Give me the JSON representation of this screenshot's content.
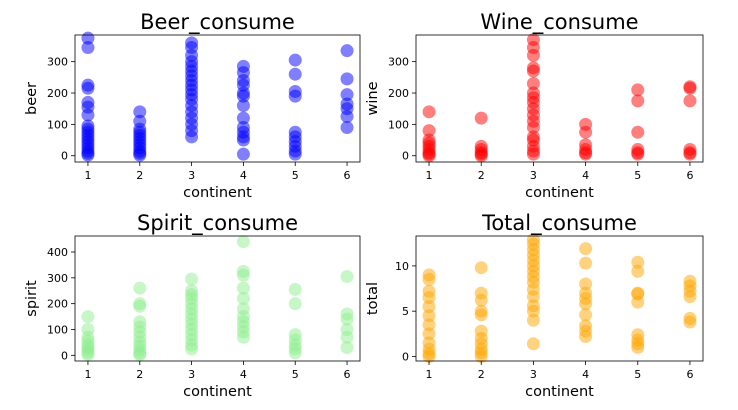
{
  "chart_data": [
    {
      "type": "scatter",
      "title": "Beer_consume",
      "xlabel": "continent",
      "ylabel": "beer",
      "color": "#0000ff",
      "alpha": 0.5,
      "xlim": [
        0.75,
        6.25
      ],
      "ylim": [
        -20,
        385
      ],
      "xticks": [
        1,
        2,
        3,
        4,
        5,
        6
      ],
      "yticks": [
        0,
        100,
        200,
        300
      ],
      "points": [
        {
          "x": 1,
          "y": 375
        },
        {
          "x": 1,
          "y": 345
        },
        {
          "x": 1,
          "y": 225
        },
        {
          "x": 1,
          "y": 215
        },
        {
          "x": 1,
          "y": 170
        },
        {
          "x": 1,
          "y": 155
        },
        {
          "x": 1,
          "y": 130
        },
        {
          "x": 1,
          "y": 95
        },
        {
          "x": 1,
          "y": 85
        },
        {
          "x": 1,
          "y": 75
        },
        {
          "x": 1,
          "y": 65
        },
        {
          "x": 1,
          "y": 55
        },
        {
          "x": 1,
          "y": 45
        },
        {
          "x": 1,
          "y": 35
        },
        {
          "x": 1,
          "y": 25
        },
        {
          "x": 1,
          "y": 15
        },
        {
          "x": 1,
          "y": 8
        },
        {
          "x": 1,
          "y": 2
        },
        {
          "x": 2,
          "y": 140
        },
        {
          "x": 2,
          "y": 110
        },
        {
          "x": 2,
          "y": 85
        },
        {
          "x": 2,
          "y": 75
        },
        {
          "x": 2,
          "y": 65
        },
        {
          "x": 2,
          "y": 55
        },
        {
          "x": 2,
          "y": 45
        },
        {
          "x": 2,
          "y": 35
        },
        {
          "x": 2,
          "y": 25
        },
        {
          "x": 2,
          "y": 15
        },
        {
          "x": 2,
          "y": 8
        },
        {
          "x": 2,
          "y": 2
        },
        {
          "x": 3,
          "y": 360
        },
        {
          "x": 3,
          "y": 345
        },
        {
          "x": 3,
          "y": 320
        },
        {
          "x": 3,
          "y": 300
        },
        {
          "x": 3,
          "y": 285
        },
        {
          "x": 3,
          "y": 270
        },
        {
          "x": 3,
          "y": 255
        },
        {
          "x": 3,
          "y": 240
        },
        {
          "x": 3,
          "y": 225
        },
        {
          "x": 3,
          "y": 210
        },
        {
          "x": 3,
          "y": 195
        },
        {
          "x": 3,
          "y": 180
        },
        {
          "x": 3,
          "y": 160
        },
        {
          "x": 3,
          "y": 140
        },
        {
          "x": 3,
          "y": 120
        },
        {
          "x": 3,
          "y": 100
        },
        {
          "x": 3,
          "y": 80
        },
        {
          "x": 3,
          "y": 60
        },
        {
          "x": 4,
          "y": 285
        },
        {
          "x": 4,
          "y": 265
        },
        {
          "x": 4,
          "y": 240
        },
        {
          "x": 4,
          "y": 225
        },
        {
          "x": 4,
          "y": 200
        },
        {
          "x": 4,
          "y": 190
        },
        {
          "x": 4,
          "y": 160
        },
        {
          "x": 4,
          "y": 120
        },
        {
          "x": 4,
          "y": 90
        },
        {
          "x": 4,
          "y": 75
        },
        {
          "x": 4,
          "y": 60
        },
        {
          "x": 4,
          "y": 50
        },
        {
          "x": 4,
          "y": 5
        },
        {
          "x": 5,
          "y": 305
        },
        {
          "x": 5,
          "y": 260
        },
        {
          "x": 5,
          "y": 205
        },
        {
          "x": 5,
          "y": 190
        },
        {
          "x": 5,
          "y": 75
        },
        {
          "x": 5,
          "y": 60
        },
        {
          "x": 5,
          "y": 45
        },
        {
          "x": 5,
          "y": 30
        },
        {
          "x": 5,
          "y": 15
        },
        {
          "x": 5,
          "y": 5
        },
        {
          "x": 6,
          "y": 335
        },
        {
          "x": 6,
          "y": 245
        },
        {
          "x": 6,
          "y": 195
        },
        {
          "x": 6,
          "y": 165
        },
        {
          "x": 6,
          "y": 150
        },
        {
          "x": 6,
          "y": 125
        },
        {
          "x": 6,
          "y": 90
        }
      ]
    },
    {
      "type": "scatter",
      "title": "Wine_consume",
      "xlabel": "continent",
      "ylabel": "wine",
      "color": "#ff0000",
      "alpha": 0.5,
      "xlim": [
        0.75,
        6.25
      ],
      "ylim": [
        -20,
        385
      ],
      "xticks": [
        1,
        2,
        3,
        4,
        5,
        6
      ],
      "yticks": [
        0,
        100,
        200,
        300
      ],
      "points": [
        {
          "x": 1,
          "y": 140
        },
        {
          "x": 1,
          "y": 80
        },
        {
          "x": 1,
          "y": 50
        },
        {
          "x": 1,
          "y": 40
        },
        {
          "x": 1,
          "y": 30
        },
        {
          "x": 1,
          "y": 20
        },
        {
          "x": 1,
          "y": 10
        },
        {
          "x": 1,
          "y": 5
        },
        {
          "x": 1,
          "y": 0
        },
        {
          "x": 2,
          "y": 120
        },
        {
          "x": 2,
          "y": 30
        },
        {
          "x": 2,
          "y": 20
        },
        {
          "x": 2,
          "y": 10
        },
        {
          "x": 2,
          "y": 5
        },
        {
          "x": 2,
          "y": 0
        },
        {
          "x": 3,
          "y": 370
        },
        {
          "x": 3,
          "y": 345
        },
        {
          "x": 3,
          "y": 320
        },
        {
          "x": 3,
          "y": 280
        },
        {
          "x": 3,
          "y": 270
        },
        {
          "x": 3,
          "y": 230
        },
        {
          "x": 3,
          "y": 200
        },
        {
          "x": 3,
          "y": 185
        },
        {
          "x": 3,
          "y": 170
        },
        {
          "x": 3,
          "y": 150
        },
        {
          "x": 3,
          "y": 130
        },
        {
          "x": 3,
          "y": 110
        },
        {
          "x": 3,
          "y": 90
        },
        {
          "x": 3,
          "y": 60
        },
        {
          "x": 3,
          "y": 50
        },
        {
          "x": 3,
          "y": 30
        },
        {
          "x": 3,
          "y": 15
        },
        {
          "x": 3,
          "y": 5
        },
        {
          "x": 4,
          "y": 100
        },
        {
          "x": 4,
          "y": 75
        },
        {
          "x": 4,
          "y": 35
        },
        {
          "x": 4,
          "y": 20
        },
        {
          "x": 4,
          "y": 10
        },
        {
          "x": 4,
          "y": 5
        },
        {
          "x": 5,
          "y": 210
        },
        {
          "x": 5,
          "y": 175
        },
        {
          "x": 5,
          "y": 75
        },
        {
          "x": 5,
          "y": 20
        },
        {
          "x": 5,
          "y": 10
        },
        {
          "x": 5,
          "y": 5
        },
        {
          "x": 6,
          "y": 220
        },
        {
          "x": 6,
          "y": 215
        },
        {
          "x": 6,
          "y": 175
        },
        {
          "x": 6,
          "y": 20
        },
        {
          "x": 6,
          "y": 10
        },
        {
          "x": 6,
          "y": 5
        }
      ]
    },
    {
      "type": "scatter",
      "title": "Spirit_consume",
      "xlabel": "continent",
      "ylabel": "spirit",
      "color": "#90ee90",
      "alpha": 0.5,
      "xlim": [
        0.75,
        6.25
      ],
      "ylim": [
        -22,
        462
      ],
      "xticks": [
        1,
        2,
        3,
        4,
        5,
        6
      ],
      "yticks": [
        0,
        100,
        200,
        300,
        400
      ],
      "points": [
        {
          "x": 1,
          "y": 150
        },
        {
          "x": 1,
          "y": 100
        },
        {
          "x": 1,
          "y": 70
        },
        {
          "x": 1,
          "y": 55
        },
        {
          "x": 1,
          "y": 40
        },
        {
          "x": 1,
          "y": 30
        },
        {
          "x": 1,
          "y": 20
        },
        {
          "x": 1,
          "y": 10
        },
        {
          "x": 1,
          "y": 3
        },
        {
          "x": 2,
          "y": 260
        },
        {
          "x": 2,
          "y": 200
        },
        {
          "x": 2,
          "y": 190
        },
        {
          "x": 2,
          "y": 130
        },
        {
          "x": 2,
          "y": 110
        },
        {
          "x": 2,
          "y": 90
        },
        {
          "x": 2,
          "y": 70
        },
        {
          "x": 2,
          "y": 50
        },
        {
          "x": 2,
          "y": 35
        },
        {
          "x": 2,
          "y": 20
        },
        {
          "x": 2,
          "y": 8
        },
        {
          "x": 2,
          "y": 2
        },
        {
          "x": 3,
          "y": 295
        },
        {
          "x": 3,
          "y": 250
        },
        {
          "x": 3,
          "y": 235
        },
        {
          "x": 3,
          "y": 220
        },
        {
          "x": 3,
          "y": 200
        },
        {
          "x": 3,
          "y": 180
        },
        {
          "x": 3,
          "y": 160
        },
        {
          "x": 3,
          "y": 140
        },
        {
          "x": 3,
          "y": 120
        },
        {
          "x": 3,
          "y": 100
        },
        {
          "x": 3,
          "y": 80
        },
        {
          "x": 3,
          "y": 60
        },
        {
          "x": 3,
          "y": 40
        },
        {
          "x": 3,
          "y": 25
        },
        {
          "x": 4,
          "y": 440
        },
        {
          "x": 4,
          "y": 325
        },
        {
          "x": 4,
          "y": 310
        },
        {
          "x": 4,
          "y": 260
        },
        {
          "x": 4,
          "y": 220
        },
        {
          "x": 4,
          "y": 180
        },
        {
          "x": 4,
          "y": 150
        },
        {
          "x": 4,
          "y": 130
        },
        {
          "x": 4,
          "y": 110
        },
        {
          "x": 4,
          "y": 90
        },
        {
          "x": 4,
          "y": 70
        },
        {
          "x": 5,
          "y": 255
        },
        {
          "x": 5,
          "y": 200
        },
        {
          "x": 5,
          "y": 80
        },
        {
          "x": 5,
          "y": 60
        },
        {
          "x": 5,
          "y": 40
        },
        {
          "x": 5,
          "y": 25
        },
        {
          "x": 5,
          "y": 10
        },
        {
          "x": 6,
          "y": 305
        },
        {
          "x": 6,
          "y": 160
        },
        {
          "x": 6,
          "y": 140
        },
        {
          "x": 6,
          "y": 100
        },
        {
          "x": 6,
          "y": 70
        },
        {
          "x": 6,
          "y": 30
        }
      ]
    },
    {
      "type": "scatter",
      "title": "Total_consume",
      "xlabel": "continent",
      "ylabel": "total",
      "color": "#ffa500",
      "alpha": 0.5,
      "xlim": [
        0.75,
        6.25
      ],
      "ylim": [
        -0.5,
        13.3
      ],
      "xticks": [
        1,
        2,
        3,
        4,
        5,
        6
      ],
      "yticks": [
        0,
        5,
        10
      ],
      "points": [
        {
          "x": 1,
          "y": 9
        },
        {
          "x": 1,
          "y": 8.5
        },
        {
          "x": 1,
          "y": 7.2
        },
        {
          "x": 1,
          "y": 6.5
        },
        {
          "x": 1,
          "y": 5.5
        },
        {
          "x": 1,
          "y": 4.5
        },
        {
          "x": 1,
          "y": 3.5
        },
        {
          "x": 1,
          "y": 2.5
        },
        {
          "x": 1,
          "y": 1.5
        },
        {
          "x": 1,
          "y": 0.8
        },
        {
          "x": 1,
          "y": 0.3
        },
        {
          "x": 1,
          "y": 0
        },
        {
          "x": 2,
          "y": 9.8
        },
        {
          "x": 2,
          "y": 7
        },
        {
          "x": 2,
          "y": 6.2
        },
        {
          "x": 2,
          "y": 5
        },
        {
          "x": 2,
          "y": 4.6
        },
        {
          "x": 2,
          "y": 2.8
        },
        {
          "x": 2,
          "y": 2
        },
        {
          "x": 2,
          "y": 1.4
        },
        {
          "x": 2,
          "y": 0.8
        },
        {
          "x": 2,
          "y": 0.4
        },
        {
          "x": 2,
          "y": 0
        },
        {
          "x": 3,
          "y": 12.9
        },
        {
          "x": 3,
          "y": 12.4
        },
        {
          "x": 3,
          "y": 11.8
        },
        {
          "x": 3,
          "y": 11.2
        },
        {
          "x": 3,
          "y": 10.6
        },
        {
          "x": 3,
          "y": 10
        },
        {
          "x": 3,
          "y": 9.4
        },
        {
          "x": 3,
          "y": 8.8
        },
        {
          "x": 3,
          "y": 8.2
        },
        {
          "x": 3,
          "y": 7.4
        },
        {
          "x": 3,
          "y": 6.6
        },
        {
          "x": 3,
          "y": 5.6
        },
        {
          "x": 3,
          "y": 5
        },
        {
          "x": 3,
          "y": 4
        },
        {
          "x": 3,
          "y": 1.4
        },
        {
          "x": 4,
          "y": 11.9
        },
        {
          "x": 4,
          "y": 10.3
        },
        {
          "x": 4,
          "y": 8
        },
        {
          "x": 4,
          "y": 7
        },
        {
          "x": 4,
          "y": 6.4
        },
        {
          "x": 4,
          "y": 5.8
        },
        {
          "x": 4,
          "y": 4.6
        },
        {
          "x": 4,
          "y": 3.4
        },
        {
          "x": 4,
          "y": 2.8
        },
        {
          "x": 4,
          "y": 2.2
        },
        {
          "x": 5,
          "y": 10.4
        },
        {
          "x": 5,
          "y": 9.4
        },
        {
          "x": 5,
          "y": 7
        },
        {
          "x": 5,
          "y": 6.9
        },
        {
          "x": 5,
          "y": 6
        },
        {
          "x": 5,
          "y": 2.4
        },
        {
          "x": 5,
          "y": 1.8
        },
        {
          "x": 5,
          "y": 1.4
        },
        {
          "x": 5,
          "y": 1
        },
        {
          "x": 6,
          "y": 8.3
        },
        {
          "x": 6,
          "y": 7.8
        },
        {
          "x": 6,
          "y": 7.2
        },
        {
          "x": 6,
          "y": 6.6
        },
        {
          "x": 6,
          "y": 4.2
        },
        {
          "x": 6,
          "y": 3.8
        }
      ]
    }
  ]
}
